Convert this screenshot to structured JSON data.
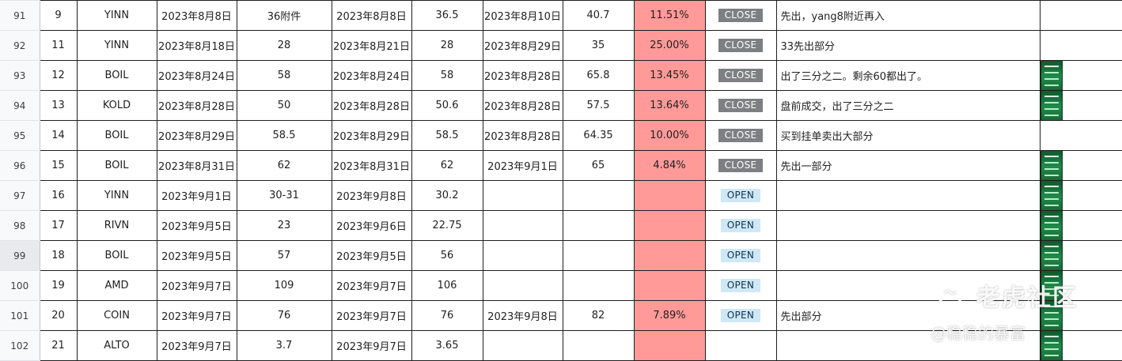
{
  "rows": [
    {
      "row": "91",
      "no": "9",
      "ticker": "YINN",
      "date1": "2023年8月8日",
      "price1": "36附件",
      "date2": "2023年8月8日",
      "price2": "36.5",
      "date3": "2023年8月10日",
      "price3": "40.7",
      "pct": "11.51%",
      "status": "CLOSE",
      "note": "先出，yang8附近再入"
    },
    {
      "row": "92",
      "no": "11",
      "ticker": "YINN",
      "date1": "2023年8月18日",
      "price1": "28",
      "date2": "2023年8月21日",
      "price2": "28",
      "date3": "2023年8月29日",
      "price3": "35",
      "pct": "25.00%",
      "status": "CLOSE",
      "note": "33先出部分"
    },
    {
      "row": "93",
      "no": "12",
      "ticker": "BOIL",
      "date1": "2023年8月24日",
      "price1": "58",
      "date2": "2023年8月24日",
      "price2": "58",
      "date3": "2023年8月28日",
      "price3": "65.8",
      "pct": "13.45%",
      "status": "CLOSE",
      "note": "出了三分之二。剩余60都出了。"
    },
    {
      "row": "94",
      "no": "13",
      "ticker": "KOLD",
      "date1": "2023年8月28日",
      "price1": "50",
      "date2": "2023年8月28日",
      "price2": "50.6",
      "date3": "2023年8月28日",
      "price3": "57.5",
      "pct": "13.64%",
      "status": "CLOSE",
      "note": "盘前成交，出了三分之二"
    },
    {
      "row": "95",
      "no": "14",
      "ticker": "BOIL",
      "date1": "2023年8月29日",
      "price1": "58.5",
      "date2": "2023年8月29日",
      "price2": "58.5",
      "date3": "2023年8月28日",
      "price3": "64.35",
      "pct": "10.00%",
      "status": "CLOSE",
      "note": "买到挂单卖出大部分"
    },
    {
      "row": "96",
      "no": "15",
      "ticker": "BOIL",
      "date1": "2023年8月31日",
      "price1": "62",
      "date2": "2023年8月31日",
      "price2": "62",
      "date3": "2023年9月1日",
      "price3": "65",
      "pct": "4.84%",
      "status": "CLOSE",
      "note": "先出一部分"
    },
    {
      "row": "97",
      "no": "16",
      "ticker": "YINN",
      "date1": "2023年9月1日",
      "price1": "30-31",
      "date2": "2023年9月8日",
      "price2": "30.2",
      "date3": "",
      "price3": "",
      "pct": "",
      "status": "OPEN",
      "note": ""
    },
    {
      "row": "98",
      "no": "17",
      "ticker": "RIVN",
      "date1": "2023年9月5日",
      "price1": "23",
      "date2": "2023年9月6日",
      "price2": "22.75",
      "date3": "",
      "price3": "",
      "pct": "",
      "status": "OPEN",
      "note": ""
    },
    {
      "row": "99",
      "no": "18",
      "ticker": "BOIL",
      "date1": "2023年9月5日",
      "price1": "57",
      "date2": "2023年9月5日",
      "price2": "56",
      "date3": "",
      "price3": "",
      "pct": "",
      "status": "OPEN",
      "note": ""
    },
    {
      "row": "100",
      "no": "19",
      "ticker": "AMD",
      "date1": "2023年9月7日",
      "price1": "109",
      "date2": "2023年9月7日",
      "price2": "106",
      "date3": "",
      "price3": "",
      "pct": "",
      "status": "OPEN",
      "note": ""
    },
    {
      "row": "101",
      "no": "20",
      "ticker": "COIN",
      "date1": "2023年9月7日",
      "price1": "76",
      "date2": "2023年9月7日",
      "price2": "76",
      "date3": "2023年9月8日",
      "price3": "82",
      "pct": "7.89%",
      "status": "OPEN",
      "note": "先出部分"
    },
    {
      "row": "102",
      "no": "21",
      "ticker": "ALTO",
      "date1": "2023年9月7日",
      "price1": "3.7",
      "date2": "2023年9月7日",
      "price2": "3.65",
      "date3": "",
      "price3": "",
      "pct": "",
      "status": "",
      "note": ""
    }
  ],
  "selected_row": "99",
  "colors": {
    "pct_fill": "#ff9a98",
    "close_chip": "#7d7f82",
    "open_chip": "#cfe8f7"
  },
  "watermark": {
    "brand": "老虎社区",
    "user": "@稳稳的暴富",
    "logo_icon": "tiger-logo-icon"
  }
}
